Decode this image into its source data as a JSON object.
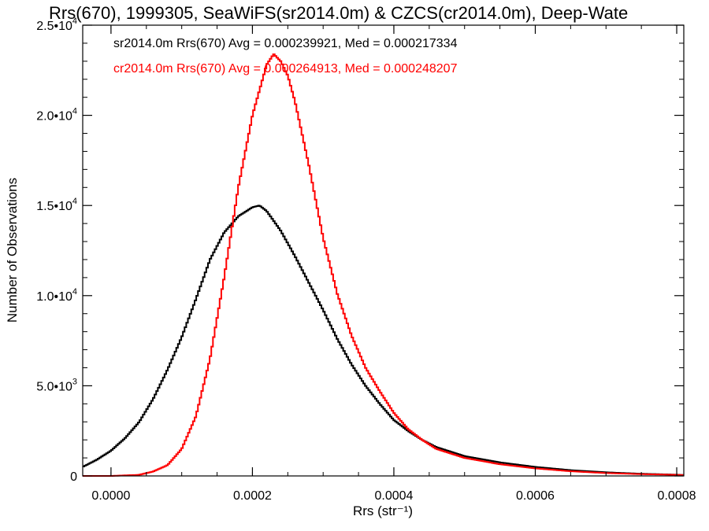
{
  "chart_data": {
    "type": "line",
    "title": "Rrs(670), 1999305, SeaWiFS(sr2014.0m) & CZCS(cr2014.0m), Deep-Wate",
    "xlabel": "Rrs (str⁻¹)",
    "ylabel": "Number of Observations",
    "xlim": [
      -4e-05,
      0.00081
    ],
    "ylim": [
      0,
      25000
    ],
    "x_ticks": [
      0.0,
      0.0002,
      0.0004,
      0.0006,
      0.0008
    ],
    "x_tick_labels": [
      "0.0000",
      "0.0002",
      "0.0004",
      "0.0006",
      "0.0008"
    ],
    "y_ticks": [
      0,
      5000,
      10000,
      15000,
      20000,
      25000
    ],
    "y_tick_labels": [
      {
        "mant": "0",
        "exp": ""
      },
      {
        "mant": "5.0•10",
        "exp": "3"
      },
      {
        "mant": "1.0•10",
        "exp": "4"
      },
      {
        "mant": "1.5•10",
        "exp": "4"
      },
      {
        "mant": "2.0•10",
        "exp": "4"
      },
      {
        "mant": "2.5•10",
        "exp": "4"
      }
    ],
    "grid": false,
    "legend": [
      {
        "text": "sr2014.0m Rrs(670) Avg = 0.000239921, Med = 0.000217334",
        "color": "#000000"
      },
      {
        "text": "cr2014.0m Rrs(670) Avg = 0.000264913, Med = 0.000248207",
        "color": "#ff0000"
      }
    ],
    "series": [
      {
        "color": "#000000",
        "x": [
          -4e-05,
          -2e-05,
          0.0,
          2e-05,
          4e-05,
          6e-05,
          8e-05,
          0.0001,
          0.00012,
          0.00014,
          0.00016,
          0.00018,
          0.0002,
          0.00021,
          0.00022,
          0.00024,
          0.00026,
          0.00028,
          0.0003,
          0.00032,
          0.00034,
          0.00036,
          0.00038,
          0.0004,
          0.00042,
          0.00044,
          0.00046,
          0.0005,
          0.00055,
          0.0006,
          0.00065,
          0.0007,
          0.00075,
          0.0008,
          0.00081
        ],
        "y": [
          500,
          900,
          1400,
          2100,
          3000,
          4300,
          5900,
          7700,
          9800,
          12000,
          13500,
          14400,
          14900,
          15000,
          14700,
          13600,
          12200,
          10700,
          9200,
          7600,
          6200,
          5000,
          4000,
          3100,
          2500,
          2000,
          1600,
          1100,
          750,
          500,
          320,
          200,
          120,
          70,
          50
        ]
      },
      {
        "color": "#ff0000",
        "x": [
          -4e-05,
          0.0,
          4e-05,
          6e-05,
          8e-05,
          0.0001,
          0.00012,
          0.00014,
          0.00016,
          0.00018,
          0.0002,
          0.00022,
          0.00023,
          0.00024,
          0.00025,
          0.00026,
          0.00028,
          0.0003,
          0.00032,
          0.00034,
          0.00036,
          0.00038,
          0.0004,
          0.00042,
          0.00044,
          0.00046,
          0.0005,
          0.00055,
          0.0006,
          0.00065,
          0.0007,
          0.00075,
          0.0008,
          0.00081
        ],
        "y": [
          0,
          0,
          60,
          250,
          600,
          1500,
          3300,
          6500,
          11000,
          16000,
          20000,
          22800,
          23400,
          23000,
          22200,
          20800,
          17200,
          13200,
          10100,
          7800,
          6000,
          4700,
          3500,
          2600,
          2000,
          1500,
          1000,
          650,
          420,
          260,
          160,
          100,
          60,
          40
        ]
      }
    ]
  }
}
